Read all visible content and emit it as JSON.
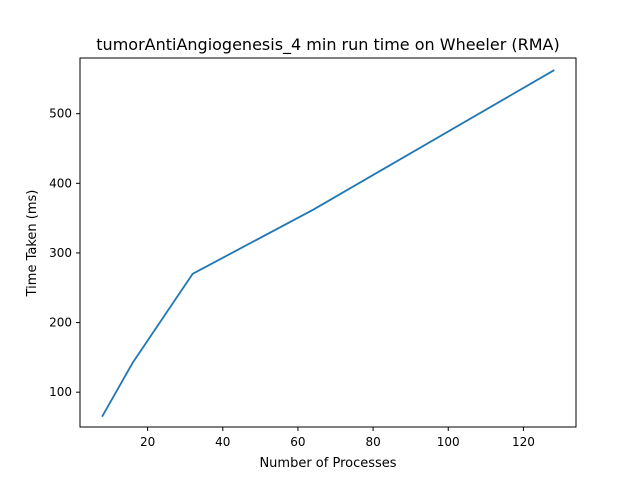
{
  "chart_data": {
    "type": "line",
    "title": "tumorAntiAngiogenesis_4 min run time on Wheeler (RMA)",
    "xlabel": "Number of Processes",
    "ylabel": "Time Taken (ms)",
    "xlim": [
      2,
      134
    ],
    "ylim": [
      50,
      580
    ],
    "xticks": [
      20,
      40,
      60,
      80,
      100,
      120
    ],
    "yticks": [
      100,
      200,
      300,
      400,
      500
    ],
    "grid": false,
    "series": [
      {
        "color": "#1f77b4",
        "x": [
          8,
          16,
          32,
          64,
          128
        ],
        "y": [
          66,
          142,
          270,
          362,
          562
        ]
      }
    ]
  }
}
